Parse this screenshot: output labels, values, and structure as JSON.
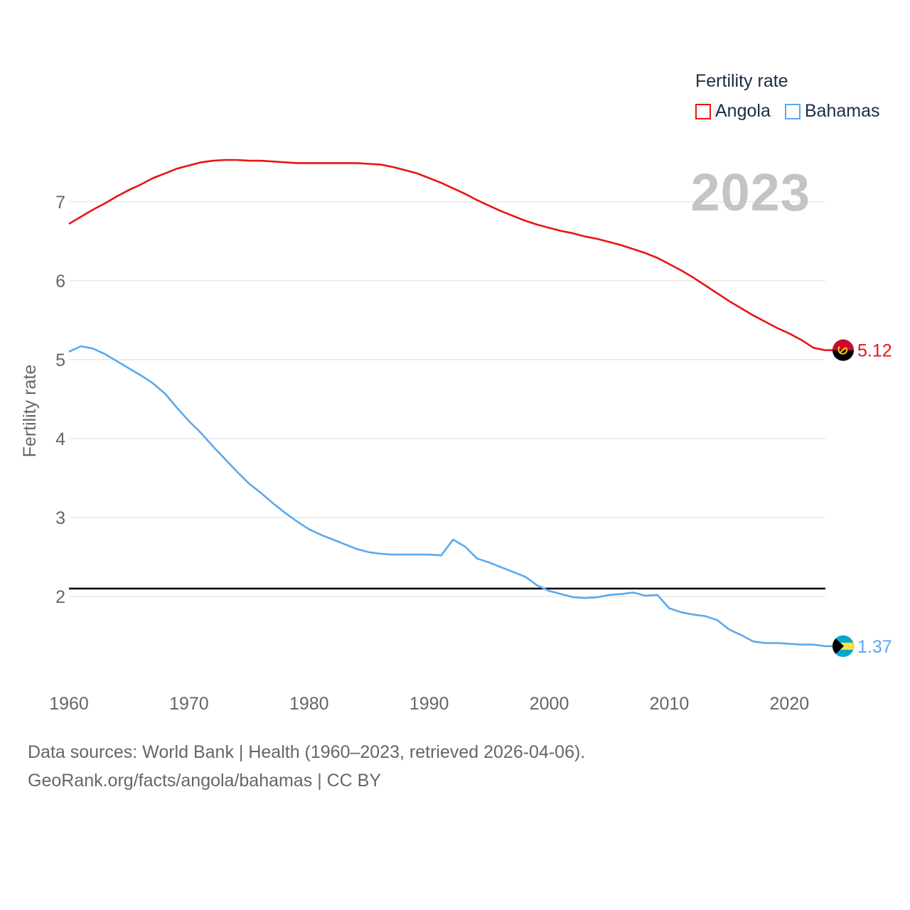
{
  "legend": {
    "title": "Fertility rate",
    "items": [
      {
        "label": "Angola",
        "color": "#e81414"
      },
      {
        "label": "Bahamas",
        "color": "#5aa9ee"
      }
    ]
  },
  "year_label": "2023",
  "footer": {
    "line1": "Data sources: World Bank | Health (1960–2023, retrieved 2026-04-06).",
    "line2": "GeoRank.org/facts/angola/bahamas | CC BY"
  },
  "chart_data": {
    "type": "line",
    "title": "Fertility rate",
    "xlabel": "",
    "ylabel": "Fertility rate",
    "xlim": [
      1960,
      2023
    ],
    "ylim": [
      1.0,
      7.8
    ],
    "x_ticks": [
      1960,
      1970,
      1980,
      1990,
      2000,
      2010,
      2020
    ],
    "y_ticks": [
      2,
      3,
      4,
      5,
      6,
      7
    ],
    "grid": true,
    "reference_line": {
      "y": 2.1,
      "color": "#000000"
    },
    "x": [
      1960,
      1961,
      1962,
      1963,
      1964,
      1965,
      1966,
      1967,
      1968,
      1969,
      1970,
      1971,
      1972,
      1973,
      1974,
      1975,
      1976,
      1977,
      1978,
      1979,
      1980,
      1981,
      1982,
      1983,
      1984,
      1985,
      1986,
      1987,
      1988,
      1989,
      1990,
      1991,
      1992,
      1993,
      1994,
      1995,
      1996,
      1997,
      1998,
      1999,
      2000,
      2001,
      2002,
      2003,
      2004,
      2005,
      2006,
      2007,
      2008,
      2009,
      2010,
      2011,
      2012,
      2013,
      2014,
      2015,
      2016,
      2017,
      2018,
      2019,
      2020,
      2021,
      2022,
      2023
    ],
    "series": [
      {
        "name": "Angola",
        "color": "#e81414",
        "end_value_label": "5.12",
        "values": [
          6.72,
          6.81,
          6.9,
          6.98,
          7.07,
          7.15,
          7.22,
          7.3,
          7.36,
          7.42,
          7.46,
          7.5,
          7.52,
          7.53,
          7.53,
          7.52,
          7.52,
          7.51,
          7.5,
          7.49,
          7.49,
          7.49,
          7.49,
          7.49,
          7.49,
          7.48,
          7.47,
          7.44,
          7.4,
          7.36,
          7.3,
          7.24,
          7.17,
          7.1,
          7.02,
          6.95,
          6.88,
          6.82,
          6.76,
          6.71,
          6.67,
          6.63,
          6.6,
          6.56,
          6.53,
          6.49,
          6.45,
          6.4,
          6.35,
          6.29,
          6.21,
          6.13,
          6.04,
          5.94,
          5.84,
          5.74,
          5.65,
          5.56,
          5.48,
          5.4,
          5.33,
          5.25,
          5.15,
          5.12
        ]
      },
      {
        "name": "Bahamas",
        "color": "#5aa9ee",
        "end_value_label": "1.37",
        "values": [
          5.1,
          5.17,
          5.14,
          5.07,
          4.98,
          4.89,
          4.8,
          4.7,
          4.57,
          4.39,
          4.22,
          4.07,
          3.9,
          3.74,
          3.58,
          3.43,
          3.31,
          3.18,
          3.06,
          2.95,
          2.85,
          2.78,
          2.72,
          2.66,
          2.6,
          2.56,
          2.54,
          2.53,
          2.53,
          2.53,
          2.53,
          2.52,
          2.72,
          2.63,
          2.48,
          2.43,
          2.37,
          2.31,
          2.25,
          2.14,
          2.07,
          2.03,
          1.99,
          1.98,
          1.99,
          2.02,
          2.03,
          2.05,
          2.01,
          2.02,
          1.85,
          1.8,
          1.77,
          1.75,
          1.7,
          1.58,
          1.51,
          1.43,
          1.41,
          1.41,
          1.4,
          1.39,
          1.39,
          1.37
        ]
      }
    ]
  }
}
